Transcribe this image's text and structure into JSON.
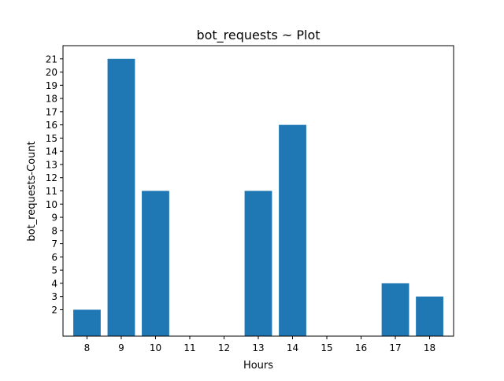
{
  "chart_data": {
    "type": "bar",
    "title": "bot_requests ~ Plot",
    "xlabel": "Hours",
    "ylabel": "bot_requests-Count",
    "categories": [
      8,
      9,
      10,
      11,
      12,
      13,
      14,
      15,
      16,
      17,
      18
    ],
    "values": [
      2,
      21,
      11,
      0,
      0,
      11,
      16,
      0,
      0,
      4,
      3
    ],
    "yticks": [
      2,
      3,
      4,
      5,
      6,
      7,
      8,
      9,
      10,
      11,
      12,
      13,
      14,
      15,
      16,
      17,
      18,
      19,
      20,
      21
    ],
    "ylim": [
      0,
      22
    ],
    "xlim": [
      7.3,
      18.7
    ],
    "bar_color": "#1f77b4",
    "grid": false,
    "legend": "none"
  }
}
